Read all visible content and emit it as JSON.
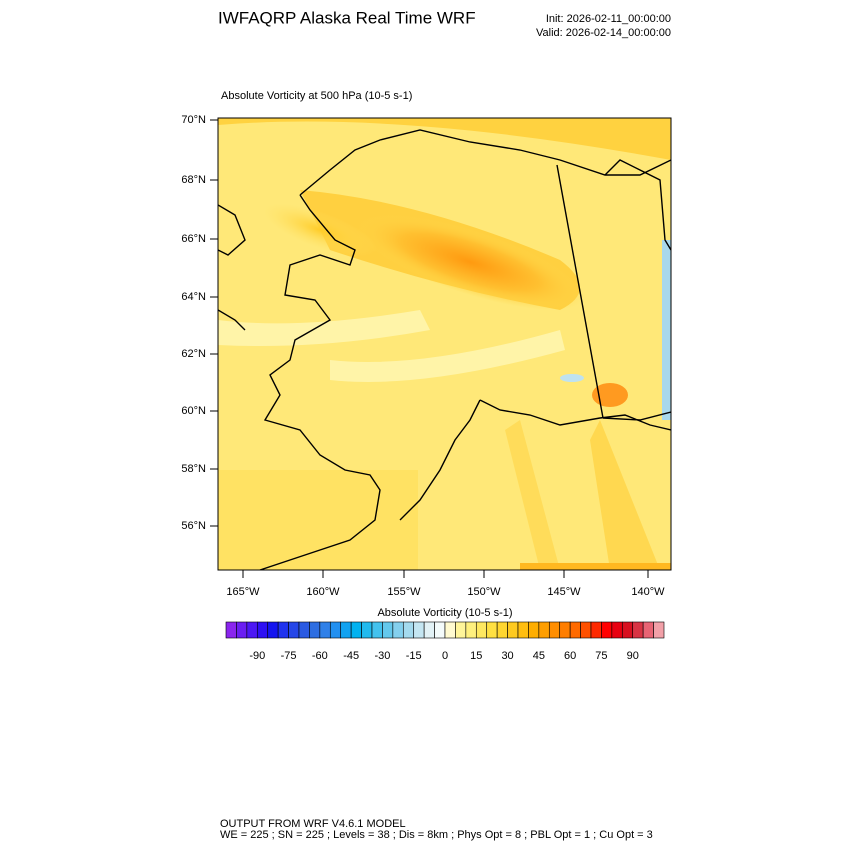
{
  "header": {
    "title": "IWFAQRP Alaska Real Time WRF",
    "init": "Init: 2026-02-11_00:00:00",
    "valid": "Valid: 2026-02-14_00:00:00"
  },
  "map": {
    "subtitle": "Absolute Vorticity at 500 hPa   (10-5 s-1)",
    "lat_labels": [
      "70°N",
      "68°N",
      "66°N",
      "64°N",
      "62°N",
      "60°N",
      "58°N",
      "56°N"
    ],
    "lon_labels": [
      "165°W",
      "160°W",
      "155°W",
      "150°W",
      "145°W",
      "140°W"
    ]
  },
  "colorbar": {
    "title": "Absolute Vorticity  (10-5 s-1)",
    "labels": [
      "-90",
      "-75",
      "-60",
      "-45",
      "-30",
      "-15",
      "0",
      "15",
      "30",
      "45",
      "60",
      "75",
      "90"
    ],
    "colors": [
      "#8a25ee",
      "#6a1ef2",
      "#4c18f4",
      "#2e10f4",
      "#1414f0",
      "#1f32ee",
      "#2546e8",
      "#2a5ae2",
      "#2e6ee2",
      "#2f80e8",
      "#2290f0",
      "#12a2f0",
      "#02b2f0",
      "#22baee",
      "#44c2ee",
      "#64c8ec",
      "#84d0ee",
      "#a4daee",
      "#c4e6f2",
      "#e2f2f6",
      "#f4fbfb",
      "#fffad0",
      "#fff59a",
      "#fff07e",
      "#ffe860",
      "#ffe042",
      "#ffd630",
      "#ffca20",
      "#ffbe10",
      "#ffae00",
      "#ff9e00",
      "#ff8e00",
      "#ff7e00",
      "#ff6a00",
      "#ff5000",
      "#ff2a00",
      "#ff0000",
      "#e80010",
      "#d81020",
      "#d83444",
      "#e86474",
      "#f2a0a8"
    ]
  },
  "footer": {
    "line1": "OUTPUT FROM WRF V4.6.1 MODEL",
    "line2": "WE = 225 ; SN = 225 ; Levels = 38 ; Dis = 8km ; Phys Opt = 8 ; PBL Opt = 1 ; Cu Opt = 3"
  }
}
